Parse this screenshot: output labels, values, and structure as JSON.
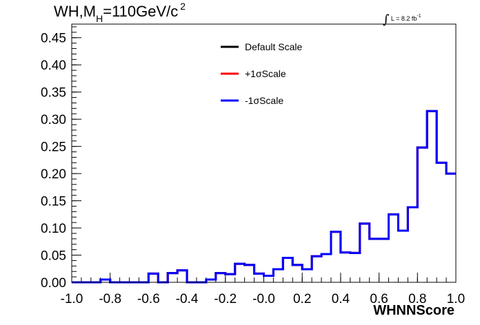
{
  "title": {
    "main": "WH,M",
    "subscript": "H",
    "rest": "=110GeV/c",
    "superscript": "2"
  },
  "luminosity": {
    "symbol": "∫",
    "text": "L = 8.2 fb",
    "superscript": "-1"
  },
  "chart_data": {
    "type": "line",
    "style": "step-histogram",
    "xlabel": "WHNNScore",
    "ylabel": "",
    "xlim": [
      -1.0,
      1.0
    ],
    "ylim": [
      0.0,
      0.475
    ],
    "x_ticks": [
      "-1.0",
      "-0.8",
      "-0.6",
      "-0.4",
      "-0.2",
      "-0.0",
      "0.2",
      "0.4",
      "0.6",
      "0.8",
      "1.0"
    ],
    "y_ticks": [
      "0.00",
      "0.05",
      "0.10",
      "0.15",
      "0.20",
      "0.25",
      "0.30",
      "0.35",
      "0.40",
      "0.45"
    ],
    "bin_edges": [
      -1.0,
      -0.95,
      -0.9,
      -0.85,
      -0.8,
      -0.75,
      -0.7,
      -0.65,
      -0.6,
      -0.55,
      -0.5,
      -0.45,
      -0.4,
      -0.35,
      -0.3,
      -0.25,
      -0.2,
      -0.15,
      -0.1,
      -0.05,
      0.0,
      0.05,
      0.1,
      0.15,
      0.2,
      0.25,
      0.3,
      0.35,
      0.4,
      0.45,
      0.5,
      0.55,
      0.6,
      0.65,
      0.7,
      0.75,
      0.8,
      0.85,
      0.9,
      0.95,
      1.0
    ],
    "legend_position": "top-center",
    "series": [
      {
        "name": "Default Scale",
        "color": "#000000",
        "values": [
          0.0,
          0.0,
          0.0,
          0.005,
          0.0,
          0.0,
          0.0,
          0.0,
          0.016,
          0.0,
          0.017,
          0.022,
          0.0,
          0.0,
          0.005,
          0.017,
          0.015,
          0.034,
          0.032,
          0.016,
          0.012,
          0.024,
          0.045,
          0.032,
          0.024,
          0.048,
          0.052,
          0.093,
          0.055,
          0.054,
          0.108,
          0.08,
          0.08,
          0.125,
          0.095,
          0.138,
          0.248,
          0.315,
          0.22,
          0.2
        ]
      },
      {
        "name": "+1σScale",
        "color": "#ff0000",
        "values": [
          0.0,
          0.0,
          0.0,
          0.005,
          0.0,
          0.0,
          0.0,
          0.0,
          0.016,
          0.0,
          0.017,
          0.022,
          0.0,
          0.0,
          0.005,
          0.017,
          0.015,
          0.034,
          0.032,
          0.016,
          0.012,
          0.024,
          0.045,
          0.032,
          0.024,
          0.048,
          0.052,
          0.093,
          0.055,
          0.054,
          0.108,
          0.08,
          0.08,
          0.125,
          0.095,
          0.138,
          0.248,
          0.315,
          0.22,
          0.2
        ]
      },
      {
        "name": "-1σScale",
        "color": "#0000ff",
        "values": [
          0.0,
          0.0,
          0.0,
          0.005,
          0.0,
          0.0,
          0.0,
          0.0,
          0.016,
          0.0,
          0.017,
          0.022,
          0.0,
          0.0,
          0.005,
          0.017,
          0.015,
          0.034,
          0.032,
          0.016,
          0.012,
          0.024,
          0.045,
          0.032,
          0.024,
          0.048,
          0.052,
          0.093,
          0.055,
          0.054,
          0.108,
          0.08,
          0.08,
          0.125,
          0.095,
          0.138,
          0.248,
          0.315,
          0.22,
          0.2
        ]
      }
    ]
  }
}
